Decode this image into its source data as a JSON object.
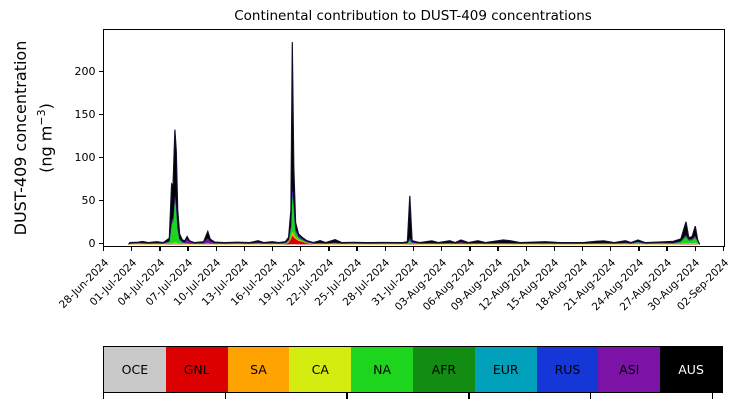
{
  "title": "Continental contribution to DUST-409 concentrations",
  "ylabel": {
    "line1": "DUST-409 concentration",
    "unit_prefix": "(ng m",
    "unit_sup": "−3",
    "unit_suffix": ")"
  },
  "chart_data": {
    "type": "area",
    "stacked": true,
    "title": "Continental contribution to DUST-409 concentrations",
    "ylabel": "DUST-409 concentration (ng m−3)",
    "x_unit": "days since 28-Jun-2024",
    "x_range": [
      0,
      66
    ],
    "y_range": [
      -2,
      249
    ],
    "y_ticks": [
      0,
      50,
      100,
      150,
      200
    ],
    "x_ticklabels": [
      "28-Jun-2024",
      "01-Jul-2024",
      "04-Jul-2024",
      "07-Jul-2024",
      "10-Jul-2024",
      "13-Jul-2024",
      "16-Jul-2024",
      "19-Jul-2024",
      "22-Jul-2024",
      "25-Jul-2024",
      "28-Jul-2024",
      "31-Jul-2024",
      "03-Aug-2024",
      "06-Aug-2024",
      "09-Aug-2024",
      "12-Aug-2024",
      "15-Aug-2024",
      "18-Aug-2024",
      "21-Aug-2024",
      "24-Aug-2024",
      "27-Aug-2024",
      "30-Aug-2024",
      "02-Sep-2024"
    ],
    "grid": false,
    "legend_position": "bottom",
    "outline_color": "#10102e",
    "series": [
      {
        "name": "OCE",
        "label": "OCE",
        "color": "#c9c9c9",
        "text": "#000000"
      },
      {
        "name": "GNL",
        "label": "GNL",
        "color": "#dd0000",
        "text": "#000000"
      },
      {
        "name": "SA",
        "label": "SA",
        "color": "#ffa302",
        "text": "#000000"
      },
      {
        "name": "CA",
        "label": "CA",
        "color": "#d5ec11",
        "text": "#000000"
      },
      {
        "name": "NA",
        "label": "NA",
        "color": "#1ed51e",
        "text": "#000000"
      },
      {
        "name": "AFR",
        "label": "AFR",
        "color": "#128c12",
        "text": "#000000"
      },
      {
        "name": "EUR",
        "label": "EUR",
        "color": "#00a0ba",
        "text": "#000000"
      },
      {
        "name": "RUS",
        "label": "RUS",
        "color": "#1537d8",
        "text": "#000000"
      },
      {
        "name": "ASI",
        "label": "ASI",
        "color": "#7d12a6",
        "text": "#000000"
      },
      {
        "name": "AUS",
        "label": "AUS",
        "color": "#000000",
        "text": "#ffffff"
      }
    ],
    "columns": [
      "x",
      "OCE",
      "GNL",
      "SA",
      "CA",
      "NA",
      "AFR",
      "EUR",
      "RUS",
      "ASI",
      "AUS"
    ],
    "rows": [
      [
        2.62,
        0,
        0,
        0,
        0,
        0,
        0,
        0,
        0,
        0,
        0
      ],
      [
        2.75,
        0.1,
        0.1,
        0.1,
        0.2,
        0.3,
        0.1,
        0.1,
        0.3,
        0.2,
        0.5
      ],
      [
        3.6,
        0.1,
        0.1,
        0.1,
        0.5,
        0.4,
        0.1,
        0.1,
        0.3,
        0.2,
        0.5
      ],
      [
        4.1,
        0.1,
        0.1,
        0.1,
        0.4,
        0.4,
        0.1,
        0.1,
        0.3,
        0.3,
        1.3
      ],
      [
        4.7,
        0.1,
        0.1,
        0.1,
        0.2,
        0.3,
        0.1,
        0.1,
        0.3,
        0.2,
        0.5
      ],
      [
        5.6,
        0.1,
        0.1,
        0.1,
        0.3,
        0.4,
        0.1,
        0.1,
        0.3,
        0.3,
        1.2
      ],
      [
        6.3,
        0.1,
        0.1,
        0.1,
        0.2,
        0.3,
        0.1,
        0.1,
        0.3,
        0.2,
        0.5
      ],
      [
        6.95,
        0.1,
        0.2,
        0.2,
        0.3,
        2,
        0.2,
        0.1,
        0.4,
        0.5,
        3
      ],
      [
        7.2,
        0.2,
        0.3,
        0.5,
        0.5,
        22,
        1,
        0.3,
        0.8,
        2.5,
        42
      ],
      [
        7.35,
        0.2,
        0.3,
        0.5,
        0.5,
        24,
        1,
        0.3,
        0.8,
        2.5,
        38
      ],
      [
        7.55,
        0.3,
        0.4,
        1,
        0.8,
        50,
        2,
        0.5,
        1.2,
        4,
        73
      ],
      [
        7.7,
        0.3,
        0.4,
        0.8,
        0.7,
        40,
        1.5,
        0.4,
        1,
        3,
        60
      ],
      [
        7.85,
        0.2,
        0.3,
        0.5,
        0.5,
        16,
        0.8,
        0.3,
        0.8,
        2,
        19
      ],
      [
        8.05,
        0.1,
        0.2,
        0.3,
        0.3,
        4,
        0.4,
        0.2,
        0.5,
        1,
        5
      ],
      [
        8.35,
        0.1,
        0.1,
        0.2,
        0.2,
        1.5,
        0.2,
        0.1,
        0.4,
        0.6,
        1.6
      ],
      [
        8.6,
        0.1,
        0.1,
        0.1,
        0.2,
        1,
        0.1,
        0.1,
        0.3,
        0.5,
        1.5
      ],
      [
        8.85,
        0.1,
        0.1,
        0.1,
        0.2,
        0.8,
        0.1,
        0.1,
        0.4,
        4.5,
        2.6
      ],
      [
        9.1,
        0.1,
        0.1,
        0.1,
        0.2,
        0.5,
        0.1,
        0.1,
        0.3,
        1.5,
        1
      ],
      [
        9.6,
        0.1,
        0.1,
        0.1,
        0.2,
        0.3,
        0.1,
        0.1,
        0.3,
        0.2,
        0.5
      ],
      [
        10.6,
        0.1,
        0.1,
        0.1,
        0.2,
        0.4,
        0.1,
        0.1,
        0.3,
        0.6,
        1
      ],
      [
        11.05,
        0.1,
        0.2,
        0.2,
        0.3,
        1,
        0.2,
        0.1,
        0.5,
        5,
        7.4
      ],
      [
        11.3,
        0.1,
        0.1,
        0.1,
        0.2,
        0.6,
        0.1,
        0.1,
        0.4,
        2,
        2.3
      ],
      [
        11.8,
        0.1,
        0.1,
        0.1,
        0.2,
        0.4,
        0.1,
        0.1,
        0.3,
        0.4,
        0.7
      ],
      [
        12.8,
        0.1,
        0.1,
        0.1,
        0.2,
        0.3,
        0.1,
        0.1,
        0.3,
        0.2,
        0.5
      ],
      [
        14.2,
        0.1,
        0.1,
        0.1,
        0.4,
        0.4,
        0.1,
        0.1,
        0.3,
        0.2,
        0.6
      ],
      [
        15.5,
        0.1,
        0.1,
        0.1,
        0.2,
        0.3,
        0.1,
        0.1,
        0.3,
        0.2,
        0.5
      ],
      [
        16.4,
        0.1,
        0.1,
        0.1,
        0.3,
        0.8,
        0.1,
        0.1,
        0.3,
        0.4,
        1.7
      ],
      [
        17.0,
        0.1,
        0.1,
        0.1,
        0.2,
        0.3,
        0.1,
        0.1,
        0.3,
        0.2,
        0.5
      ],
      [
        17.9,
        0.1,
        0.1,
        0.1,
        0.2,
        0.5,
        0.1,
        0.1,
        0.3,
        0.3,
        1.2
      ],
      [
        18.6,
        0.1,
        0.1,
        0.1,
        0.2,
        0.3,
        0.1,
        0.1,
        0.3,
        0.2,
        0.5
      ],
      [
        19.3,
        0.1,
        0.3,
        0.2,
        0.2,
        0.5,
        0.1,
        0.1,
        0.3,
        0.3,
        0.9
      ],
      [
        19.65,
        0.1,
        2,
        0.5,
        0.3,
        1.5,
        0.2,
        0.1,
        0.4,
        0.5,
        2.4
      ],
      [
        19.9,
        0.2,
        6,
        2,
        0.6,
        10,
        0.8,
        0.3,
        0.8,
        2,
        17.3
      ],
      [
        20.05,
        0.3,
        10,
        4,
        1,
        45,
        3,
        1,
        2,
        4.5,
        164
      ],
      [
        20.2,
        0.3,
        8,
        3,
        0.8,
        30,
        2,
        0.8,
        1.5,
        3,
        40
      ],
      [
        20.4,
        0.2,
        6,
        1.5,
        0.5,
        6,
        1,
        0.4,
        1,
        1.5,
        7
      ],
      [
        20.7,
        0.2,
        4,
        1,
        0.4,
        2,
        0.5,
        0.2,
        0.8,
        1,
        2
      ],
      [
        21.1,
        0.1,
        3,
        0.6,
        0.3,
        1,
        0.3,
        0.2,
        0.5,
        0.6,
        1.4
      ],
      [
        21.6,
        0.1,
        1.2,
        0.3,
        0.2,
        0.6,
        0.2,
        0.1,
        0.4,
        0.4,
        0.7
      ],
      [
        22.3,
        0.1,
        0.1,
        0.1,
        0.2,
        0.3,
        0.1,
        0.1,
        0.3,
        0.2,
        0.5
      ],
      [
        23.0,
        0.1,
        0.2,
        0.1,
        0.2,
        0.5,
        0.1,
        0.1,
        0.3,
        0.4,
        2.3
      ],
      [
        23.6,
        0.1,
        0.1,
        0.1,
        0.2,
        0.3,
        0.1,
        0.1,
        0.3,
        0.2,
        0.5
      ],
      [
        24.6,
        0.1,
        0.1,
        0.1,
        0.3,
        0.8,
        0.1,
        0.1,
        0.3,
        0.4,
        3
      ],
      [
        25.3,
        0.1,
        0.1,
        0.1,
        0.2,
        0.3,
        0.1,
        0.1,
        0.3,
        0.2,
        0.5
      ],
      [
        26.5,
        0.1,
        0.1,
        0.1,
        0.3,
        0.5,
        0.1,
        0.1,
        0.3,
        0.2,
        0.4
      ],
      [
        28.0,
        0.1,
        0.1,
        0.1,
        0.2,
        0.3,
        0.1,
        0.1,
        0.3,
        0.2,
        0.5
      ],
      [
        30.0,
        0.1,
        0.1,
        0.1,
        0.3,
        0.4,
        0.1,
        0.1,
        0.3,
        0.2,
        0.4
      ],
      [
        31.8,
        0.1,
        0.1,
        0.1,
        0.2,
        0.3,
        0.1,
        0.1,
        0.3,
        0.2,
        0.5
      ],
      [
        32.3,
        0.1,
        0.2,
        0.1,
        0.2,
        0.5,
        0.1,
        0.1,
        0.3,
        0.4,
        1
      ],
      [
        32.55,
        0.2,
        1,
        0.5,
        0.4,
        2.5,
        0.5,
        0.3,
        0.8,
        2,
        48
      ],
      [
        32.8,
        0.1,
        0.3,
        0.2,
        0.2,
        0.8,
        0.2,
        0.1,
        0.4,
        0.6,
        1.3
      ],
      [
        33.6,
        0.1,
        0.1,
        0.1,
        0.2,
        0.3,
        0.1,
        0.1,
        0.3,
        0.2,
        0.5
      ],
      [
        34.9,
        0.1,
        0.1,
        0.1,
        0.2,
        0.5,
        0.1,
        0.1,
        0.3,
        0.3,
        2.2
      ],
      [
        35.6,
        0.1,
        0.1,
        0.1,
        0.2,
        0.3,
        0.1,
        0.1,
        0.3,
        0.2,
        0.5
      ],
      [
        36.8,
        0.1,
        0.1,
        0.1,
        0.2,
        0.6,
        0.1,
        0.1,
        0.3,
        0.3,
        2.1
      ],
      [
        37.4,
        0.1,
        0.1,
        0.1,
        0.2,
        0.3,
        0.1,
        0.1,
        0.3,
        0.2,
        0.5
      ],
      [
        38.0,
        0.1,
        0.1,
        0.1,
        0.2,
        0.6,
        0.1,
        0.1,
        0.3,
        1,
        2.4
      ],
      [
        38.8,
        0.1,
        0.1,
        0.1,
        0.2,
        0.3,
        0.1,
        0.1,
        0.3,
        0.2,
        0.5
      ],
      [
        39.8,
        0.1,
        0.1,
        0.1,
        0.2,
        0.5,
        0.1,
        0.1,
        0.3,
        0.4,
        2.1
      ],
      [
        40.6,
        0.1,
        0.1,
        0.1,
        0.2,
        0.3,
        0.1,
        0.1,
        0.3,
        0.2,
        0.5
      ],
      [
        42.5,
        0.1,
        0.1,
        0.1,
        0.2,
        0.6,
        0.1,
        0.1,
        0.3,
        0.3,
        3.1
      ],
      [
        43.3,
        0.1,
        0.1,
        0.1,
        0.2,
        0.5,
        0.1,
        0.1,
        0.3,
        0.3,
        2.2
      ],
      [
        44.3,
        0.1,
        0.1,
        0.1,
        0.2,
        0.3,
        0.1,
        0.1,
        0.3,
        0.2,
        0.5
      ],
      [
        47.0,
        0.1,
        0.1,
        0.1,
        0.2,
        0.5,
        0.1,
        0.1,
        0.3,
        0.2,
        1.3
      ],
      [
        48.5,
        0.1,
        0.1,
        0.1,
        0.2,
        0.3,
        0.1,
        0.1,
        0.3,
        0.2,
        0.5
      ],
      [
        51.0,
        0.1,
        0.1,
        0.1,
        0.2,
        0.3,
        0.1,
        0.1,
        0.3,
        0.2,
        0.5
      ],
      [
        52.3,
        0.1,
        0.1,
        0.1,
        0.2,
        0.5,
        0.1,
        0.1,
        0.3,
        0.2,
        1.8
      ],
      [
        53.2,
        0.1,
        0.1,
        0.1,
        0.2,
        0.6,
        0.1,
        0.1,
        0.3,
        0.3,
        2.1
      ],
      [
        54.3,
        0.1,
        0.1,
        0.1,
        0.2,
        0.3,
        0.1,
        0.1,
        0.3,
        0.2,
        0.5
      ],
      [
        55.5,
        0.1,
        0.1,
        0.1,
        0.2,
        0.9,
        0.1,
        0.1,
        0.3,
        0.3,
        1.8
      ],
      [
        56.1,
        0.1,
        0.1,
        0.1,
        0.2,
        0.3,
        0.1,
        0.1,
        0.3,
        0.2,
        0.5
      ],
      [
        56.85,
        0.1,
        0.1,
        0.1,
        0.5,
        1.6,
        0.2,
        0.1,
        0.3,
        0.3,
        1.7
      ],
      [
        57.6,
        0.1,
        0.1,
        0.1,
        0.2,
        0.3,
        0.1,
        0.1,
        0.3,
        0.2,
        0.5
      ],
      [
        59.3,
        0.1,
        0.1,
        0.1,
        0.2,
        0.8,
        0.1,
        0.1,
        0.3,
        0.2,
        0.6
      ],
      [
        60.6,
        0.1,
        0.1,
        0.1,
        0.2,
        0.6,
        0.1,
        0.1,
        0.3,
        0.3,
        1.6
      ],
      [
        61.4,
        0.1,
        0.2,
        0.2,
        0.3,
        2,
        0.3,
        0.1,
        0.4,
        0.5,
        2
      ],
      [
        61.95,
        0.2,
        0.5,
        0.4,
        0.5,
        7,
        1,
        0.2,
        0.6,
        1,
        14.6
      ],
      [
        62.25,
        0.1,
        0.3,
        0.3,
        0.4,
        3,
        0.5,
        0.2,
        0.5,
        0.7,
        1.5
      ],
      [
        62.6,
        0.1,
        0.3,
        0.3,
        0.4,
        3.5,
        0.5,
        0.2,
        0.5,
        0.7,
        2.5
      ],
      [
        62.95,
        0.2,
        0.4,
        0.4,
        0.8,
        6,
        0.8,
        0.2,
        0.6,
        0.9,
        10.7
      ],
      [
        63.2,
        0.1,
        0.2,
        0.2,
        0.4,
        2,
        0.3,
        0.1,
        0.4,
        0.4,
        0.9
      ],
      [
        63.4,
        0,
        0,
        0,
        0,
        0,
        0,
        0,
        0,
        0,
        0
      ]
    ]
  }
}
